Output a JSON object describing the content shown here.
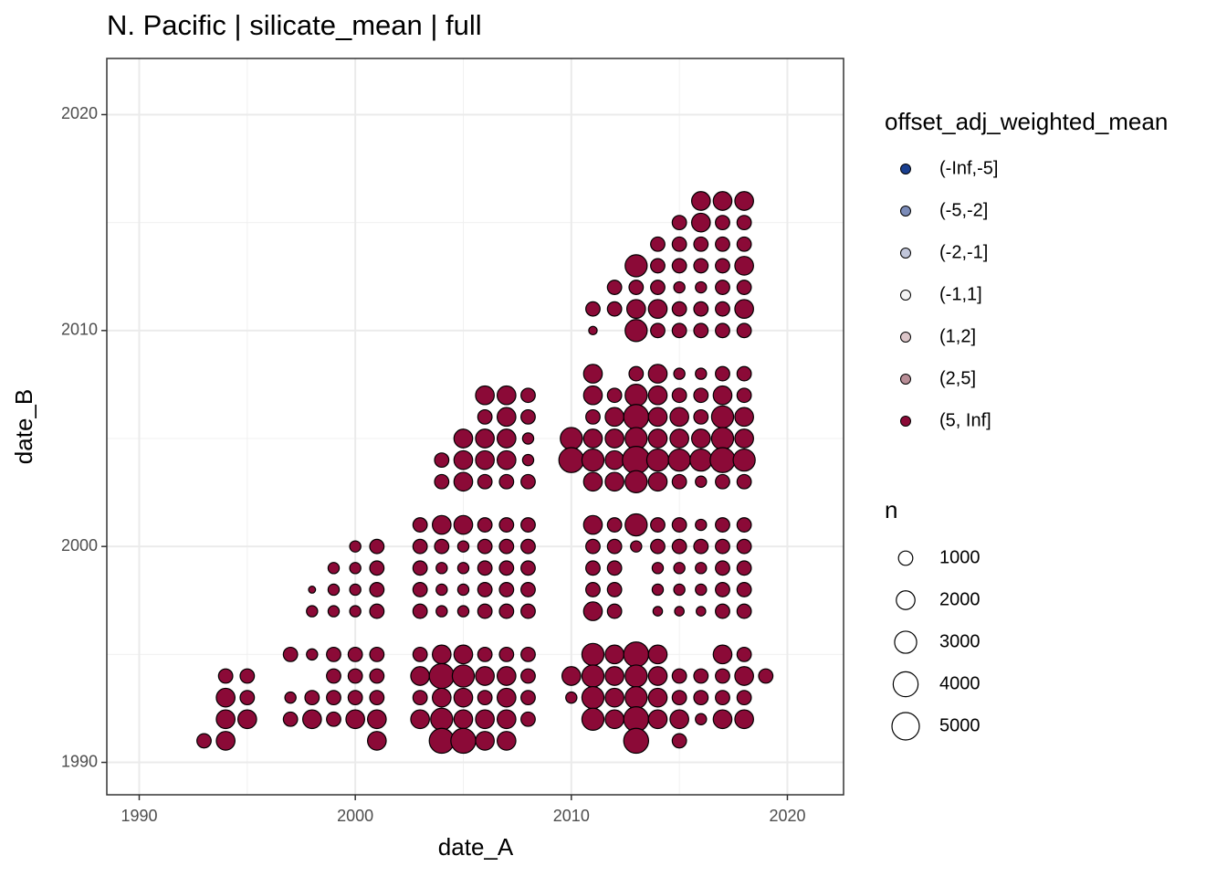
{
  "chart_data": {
    "type": "scatter",
    "title": "N. Pacific | silicate_mean | full",
    "x_label": "date_A",
    "y_label": "date_B",
    "xlim": [
      1988.5,
      2022.6
    ],
    "ylim": [
      1988.5,
      2022.6
    ],
    "xticks": [
      1990,
      2000,
      2010,
      2020
    ],
    "yticks": [
      1990,
      2000,
      2010,
      2020
    ],
    "grid": true,
    "color_legend": {
      "title": "offset_adj_weighted_mean",
      "entries": [
        {
          "label": "(-Inf,-5]",
          "color": "#1a3f8f"
        },
        {
          "label": "(-5,-2]",
          "color": "#7b8bb8"
        },
        {
          "label": "(-2,-1]",
          "color": "#c1c6da"
        },
        {
          "label": "(-1,1]",
          "color": "#f4f4f4"
        },
        {
          "label": "(1,2]",
          "color": "#dcc6c9"
        },
        {
          "label": "(2,5]",
          "color": "#b88d96"
        },
        {
          "label": "(5, Inf]",
          "color": "#8b0a37"
        }
      ]
    },
    "size_legend": {
      "title": "n",
      "values": [
        1000,
        2000,
        3000,
        4000,
        5000
      ]
    },
    "series": [
      {
        "name": "(5, Inf]",
        "color": "#8b0a37",
        "x": [
          2016,
          2017,
          2018,
          2015,
          2016,
          2017,
          2018,
          2014,
          2015,
          2016,
          2017,
          2018,
          2013,
          2014,
          2015,
          2016,
          2017,
          2018,
          2012,
          2013,
          2014,
          2015,
          2016,
          2017,
          2018,
          2011,
          2012,
          2013,
          2014,
          2015,
          2016,
          2017,
          2018,
          2011,
          2013,
          2014,
          2015,
          2016,
          2017,
          2018,
          2011,
          2013,
          2014,
          2015,
          2016,
          2017,
          2018,
          2006,
          2007,
          2008,
          2011,
          2012,
          2013,
          2014,
          2015,
          2016,
          2017,
          2018,
          2006,
          2007,
          2008,
          2011,
          2012,
          2013,
          2014,
          2015,
          2016,
          2017,
          2018,
          2005,
          2006,
          2007,
          2008,
          2010,
          2011,
          2012,
          2013,
          2014,
          2015,
          2016,
          2017,
          2018,
          2004,
          2005,
          2006,
          2007,
          2008,
          2010,
          2011,
          2012,
          2013,
          2014,
          2015,
          2016,
          2017,
          2018,
          2004,
          2005,
          2006,
          2007,
          2008,
          2011,
          2012,
          2013,
          2014,
          2015,
          2016,
          2017,
          2018,
          2003,
          2004,
          2005,
          2006,
          2007,
          2008,
          2011,
          2012,
          2013,
          2014,
          2015,
          2016,
          2017,
          2018,
          2000,
          2001,
          2003,
          2004,
          2005,
          2006,
          2007,
          2008,
          2011,
          2012,
          2013,
          2014,
          2015,
          2016,
          2017,
          2018,
          1999,
          2000,
          2001,
          2003,
          2004,
          2005,
          2006,
          2007,
          2008,
          2011,
          2012,
          2014,
          2015,
          2016,
          2017,
          2018,
          1998,
          1999,
          2000,
          2001,
          2003,
          2004,
          2005,
          2006,
          2007,
          2008,
          2011,
          2012,
          2014,
          2015,
          2016,
          2017,
          2018,
          1998,
          1999,
          2000,
          2001,
          2003,
          2004,
          2005,
          2006,
          2007,
          2008,
          2011,
          2012,
          2014,
          2015,
          2016,
          2017,
          2018,
          1997,
          1998,
          1999,
          2000,
          2001,
          2003,
          2004,
          2005,
          2006,
          2007,
          2008,
          2011,
          2012,
          2013,
          2014,
          2017,
          2018,
          1994,
          1995,
          1999,
          2000,
          2001,
          2003,
          2004,
          2005,
          2006,
          2007,
          2008,
          2010,
          2011,
          2012,
          2013,
          2014,
          2015,
          2016,
          2017,
          2018,
          2019,
          1994,
          1995,
          1997,
          1998,
          1999,
          2000,
          2001,
          2003,
          2004,
          2005,
          2006,
          2007,
          2008,
          2010,
          2011,
          2012,
          2013,
          2014,
          2015,
          2016,
          2017,
          2018,
          1994,
          1995,
          1997,
          1998,
          1999,
          2000,
          2001,
          2003,
          2004,
          2005,
          2006,
          2007,
          2008,
          2011,
          2012,
          2013,
          2014,
          2015,
          2016,
          2017,
          2018,
          1993,
          1994,
          2001,
          2004,
          2005,
          2006,
          2007,
          2013,
          2015
        ],
        "y": [
          2016,
          2016,
          2016,
          2015,
          2015,
          2015,
          2015,
          2014,
          2014,
          2014,
          2014,
          2014,
          2013,
          2013,
          2013,
          2013,
          2013,
          2013,
          2012,
          2012,
          2012,
          2012,
          2012,
          2012,
          2012,
          2011,
          2011,
          2011,
          2011,
          2011,
          2011,
          2011,
          2011,
          2010,
          2010,
          2010,
          2010,
          2010,
          2010,
          2010,
          2008,
          2008,
          2008,
          2008,
          2008,
          2008,
          2008,
          2007,
          2007,
          2007,
          2007,
          2007,
          2007,
          2007,
          2007,
          2007,
          2007,
          2007,
          2006,
          2006,
          2006,
          2006,
          2006,
          2006,
          2006,
          2006,
          2006,
          2006,
          2006,
          2005,
          2005,
          2005,
          2005,
          2005,
          2005,
          2005,
          2005,
          2005,
          2005,
          2005,
          2005,
          2005,
          2004,
          2004,
          2004,
          2004,
          2004,
          2004,
          2004,
          2004,
          2004,
          2004,
          2004,
          2004,
          2004,
          2004,
          2003,
          2003,
          2003,
          2003,
          2003,
          2003,
          2003,
          2003,
          2003,
          2003,
          2003,
          2003,
          2003,
          2001,
          2001,
          2001,
          2001,
          2001,
          2001,
          2001,
          2001,
          2001,
          2001,
          2001,
          2001,
          2001,
          2001,
          2000,
          2000,
          2000,
          2000,
          2000,
          2000,
          2000,
          2000,
          2000,
          2000,
          2000,
          2000,
          2000,
          2000,
          2000,
          2000,
          1999,
          1999,
          1999,
          1999,
          1999,
          1999,
          1999,
          1999,
          1999,
          1999,
          1999,
          1999,
          1999,
          1999,
          1999,
          1999,
          1998,
          1998,
          1998,
          1998,
          1998,
          1998,
          1998,
          1998,
          1998,
          1998,
          1998,
          1998,
          1998,
          1998,
          1998,
          1998,
          1998,
          1997,
          1997,
          1997,
          1997,
          1997,
          1997,
          1997,
          1997,
          1997,
          1997,
          1997,
          1997,
          1997,
          1997,
          1997,
          1997,
          1997,
          1995,
          1995,
          1995,
          1995,
          1995,
          1995,
          1995,
          1995,
          1995,
          1995,
          1995,
          1995,
          1995,
          1995,
          1995,
          1995,
          1995,
          1994,
          1994,
          1994,
          1994,
          1994,
          1994,
          1994,
          1994,
          1994,
          1994,
          1994,
          1994,
          1994,
          1994,
          1994,
          1994,
          1994,
          1994,
          1994,
          1994,
          1994,
          1993,
          1993,
          1993,
          1993,
          1993,
          1993,
          1993,
          1993,
          1993,
          1993,
          1993,
          1993,
          1993,
          1993,
          1993,
          1993,
          1993,
          1993,
          1993,
          1993,
          1993,
          1993,
          1992,
          1992,
          1992,
          1992,
          1992,
          1992,
          1992,
          1992,
          1992,
          1992,
          1992,
          1992,
          1992,
          1992,
          1992,
          1992,
          1992,
          1992,
          1992,
          1992,
          1992,
          1991,
          1991,
          1991,
          1991,
          1991,
          1991,
          1991,
          1991,
          1991
        ],
        "size": [
          2000,
          2000,
          2000,
          1000,
          2000,
          1000,
          1000,
          1000,
          1000,
          1000,
          1000,
          1000,
          3000,
          1000,
          1000,
          1000,
          1000,
          2000,
          1000,
          1000,
          1000,
          500,
          500,
          1000,
          1000,
          1000,
          1000,
          2000,
          2000,
          1000,
          1000,
          1000,
          2000,
          200,
          3000,
          1000,
          1000,
          1000,
          1000,
          1000,
          2000,
          1000,
          2000,
          500,
          500,
          1000,
          1000,
          2000,
          2000,
          1000,
          2000,
          1000,
          3000,
          2000,
          1000,
          1000,
          2000,
          1000,
          1000,
          2000,
          1000,
          1000,
          2000,
          4000,
          2000,
          2000,
          1000,
          3000,
          2000,
          2000,
          2000,
          2000,
          500,
          3000,
          2000,
          2000,
          3000,
          2000,
          2000,
          2000,
          3000,
          2000,
          1000,
          2000,
          2000,
          2000,
          500,
          4000,
          3000,
          2000,
          5000,
          3000,
          3000,
          3000,
          4000,
          3000,
          1000,
          2000,
          1000,
          1000,
          1000,
          2000,
          2000,
          3000,
          2000,
          1000,
          500,
          1000,
          1000,
          1000,
          2000,
          2000,
          1000,
          1000,
          1000,
          2000,
          1000,
          3000,
          1000,
          1000,
          500,
          1000,
          1000,
          500,
          1000,
          1000,
          1000,
          500,
          1000,
          1000,
          1000,
          1000,
          1000,
          500,
          1000,
          1000,
          1000,
          1000,
          1000,
          500,
          500,
          1000,
          1000,
          500,
          500,
          1000,
          1000,
          1000,
          1000,
          1000,
          500,
          500,
          500,
          1000,
          1000,
          100,
          500,
          500,
          1000,
          1000,
          500,
          500,
          1000,
          1000,
          1000,
          1000,
          1000,
          500,
          500,
          500,
          1000,
          1000,
          500,
          500,
          500,
          1000,
          1000,
          500,
          500,
          1000,
          1000,
          1000,
          2000,
          1000,
          300,
          300,
          300,
          1000,
          1000,
          1000,
          500,
          1000,
          1000,
          1000,
          1000,
          2000,
          2000,
          1000,
          1000,
          1000,
          3000,
          2000,
          4000,
          2000,
          2000,
          1000,
          1000,
          1000,
          1000,
          1000,
          1000,
          2000,
          4000,
          3000,
          2000,
          2000,
          1000,
          2000,
          3000,
          2000,
          3000,
          2000,
          1000,
          1000,
          1000,
          2000,
          1000,
          2000,
          1000,
          500,
          1000,
          1000,
          1000,
          1000,
          1000,
          2000,
          2000,
          1000,
          2000,
          1000,
          500,
          3000,
          2000,
          3000,
          2000,
          1000,
          1000,
          1000,
          1000,
          2000,
          2000,
          1000,
          2000,
          1000,
          2000,
          2000,
          2000,
          3000,
          2000,
          2000,
          2000,
          1000,
          3000,
          2000,
          4000,
          2000,
          2000,
          500,
          2000,
          2000,
          1000,
          2000,
          2000,
          4000,
          4000,
          2000,
          2000,
          4000,
          1000
        ]
      }
    ]
  }
}
